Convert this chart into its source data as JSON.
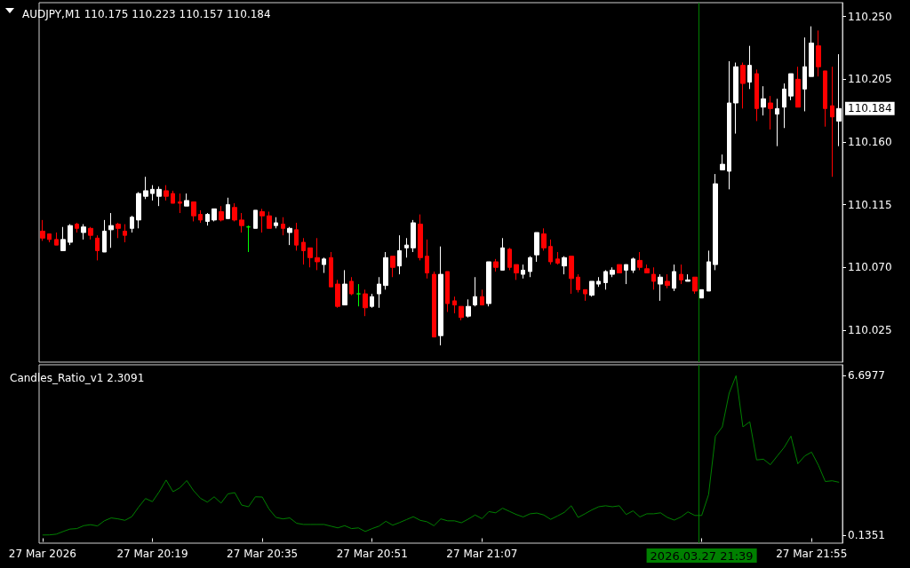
{
  "chart_data": [
    {
      "type": "candlestick",
      "title": "AUDJPY,M1 110.175 110.223 110.157 110.184",
      "categories": [
        "27 Mar 2026",
        null,
        null,
        null,
        null,
        null,
        null,
        null,
        null,
        null,
        null,
        null,
        null,
        null,
        null,
        null,
        "27 Mar 20:19",
        null,
        null,
        null,
        null,
        null,
        null,
        null,
        null,
        null,
        null,
        null,
        null,
        null,
        null,
        null,
        "27 Mar 20:35",
        null,
        null,
        null,
        null,
        null,
        null,
        null,
        null,
        null,
        null,
        null,
        null,
        null,
        null,
        null,
        "27 Mar 20:51",
        null,
        null,
        null,
        null,
        null,
        null,
        null,
        null,
        null,
        null,
        null,
        null,
        null,
        null,
        null,
        "27 Mar 21:07",
        null,
        null,
        null,
        null,
        null,
        null,
        null,
        null,
        null,
        null,
        null,
        null,
        null,
        null,
        null,
        null,
        null,
        null,
        null,
        null,
        null,
        null,
        null,
        null,
        null,
        null,
        null,
        null,
        null,
        null,
        null,
        "2026.03.27 21:39",
        null,
        null,
        null,
        null,
        null,
        null,
        null,
        null,
        null,
        null,
        null,
        null,
        null,
        null,
        null,
        "27 Mar 21:55",
        null,
        null,
        null,
        null
      ],
      "ohlc": [
        [
          110.096,
          110.104,
          110.089,
          110.091
        ],
        [
          110.094,
          110.094,
          110.088,
          110.09
        ],
        [
          110.09,
          110.095,
          110.086,
          110.086
        ],
        [
          110.082,
          110.099,
          110.082,
          110.09
        ],
        [
          110.088,
          110.101,
          110.086,
          110.1
        ],
        [
          110.101,
          110.102,
          110.095,
          110.098
        ],
        [
          110.095,
          110.101,
          110.09,
          110.099
        ],
        [
          110.098,
          110.099,
          110.09,
          110.093
        ],
        [
          110.091,
          110.093,
          110.075,
          110.082
        ],
        [
          110.081,
          110.104,
          110.081,
          110.096
        ],
        [
          110.097,
          110.109,
          110.084,
          110.1
        ],
        [
          110.101,
          110.102,
          110.091,
          110.098
        ],
        [
          110.096,
          110.101,
          110.088,
          110.093
        ],
        [
          110.098,
          110.107,
          110.095,
          110.106
        ],
        [
          110.104,
          110.124,
          110.098,
          110.123
        ],
        [
          110.121,
          110.135,
          110.119,
          110.125
        ],
        [
          110.123,
          110.129,
          110.118,
          110.126
        ],
        [
          110.121,
          110.128,
          110.114,
          110.126
        ],
        [
          110.125,
          110.129,
          110.118,
          110.121
        ],
        [
          110.123,
          110.125,
          110.116,
          110.116
        ],
        [
          110.117,
          110.123,
          110.109,
          110.116
        ],
        [
          110.114,
          110.123,
          110.114,
          110.118
        ],
        [
          110.117,
          110.117,
          110.103,
          110.107
        ],
        [
          110.108,
          110.111,
          110.102,
          110.104
        ],
        [
          110.103,
          110.109,
          110.1,
          110.108
        ],
        [
          110.104,
          110.112,
          110.103,
          110.112
        ],
        [
          110.11,
          110.114,
          110.103,
          110.104
        ],
        [
          110.105,
          110.12,
          110.105,
          110.115
        ],
        [
          110.113,
          110.116,
          110.103,
          110.104
        ],
        [
          110.104,
          110.109,
          110.095,
          110.1
        ],
        [
          110.099,
          110.1,
          110.081,
          110.099
        ],
        [
          110.098,
          110.111,
          110.098,
          110.111
        ],
        [
          110.11,
          110.112,
          110.095,
          110.107
        ],
        [
          110.107,
          110.11,
          110.098,
          110.098
        ],
        [
          110.1,
          110.106,
          110.098,
          110.102
        ],
        [
          110.101,
          110.106,
          110.093,
          110.098
        ],
        [
          110.095,
          110.099,
          110.086,
          110.098
        ],
        [
          110.097,
          110.102,
          110.082,
          110.086
        ],
        [
          110.088,
          110.091,
          110.072,
          110.082
        ],
        [
          110.084,
          110.084,
          110.07,
          110.077
        ],
        [
          110.077,
          110.091,
          110.068,
          110.074
        ],
        [
          110.072,
          110.077,
          110.066,
          110.076
        ],
        [
          110.077,
          110.081,
          110.056,
          110.056
        ],
        [
          110.058,
          110.061,
          110.041,
          110.042
        ],
        [
          110.043,
          110.068,
          110.043,
          110.058
        ],
        [
          110.06,
          110.063,
          110.05,
          110.051
        ],
        [
          110.051,
          110.058,
          110.042,
          110.051
        ],
        [
          110.051,
          110.054,
          110.035,
          110.041
        ],
        [
          110.042,
          110.051,
          110.041,
          110.049
        ],
        [
          110.051,
          110.063,
          110.041,
          110.058
        ],
        [
          110.057,
          110.081,
          110.054,
          110.077
        ],
        [
          110.078,
          110.078,
          110.063,
          110.07
        ],
        [
          110.071,
          110.093,
          110.065,
          110.082
        ],
        [
          110.084,
          110.091,
          110.077,
          110.086
        ],
        [
          110.084,
          110.104,
          110.081,
          110.102
        ],
        [
          110.101,
          110.108,
          110.075,
          110.077
        ],
        [
          110.078,
          110.09,
          110.062,
          110.066
        ],
        [
          110.065,
          110.067,
          110.02,
          110.02
        ],
        [
          110.021,
          110.085,
          110.014,
          110.065
        ],
        [
          110.067,
          110.067,
          110.038,
          110.044
        ],
        [
          110.046,
          110.049,
          110.037,
          110.043
        ],
        [
          110.042,
          110.042,
          110.032,
          110.034
        ],
        [
          110.035,
          110.047,
          110.034,
          110.042
        ],
        [
          110.043,
          110.063,
          110.042,
          110.049
        ],
        [
          110.049,
          110.054,
          110.043,
          110.043
        ],
        [
          110.044,
          110.074,
          110.042,
          110.074
        ],
        [
          110.074,
          110.076,
          110.067,
          110.07
        ],
        [
          110.068,
          110.091,
          110.068,
          110.084
        ],
        [
          110.083,
          110.084,
          110.068,
          110.07
        ],
        [
          110.072,
          110.072,
          110.061,
          110.066
        ],
        [
          110.065,
          110.072,
          110.062,
          110.068
        ],
        [
          110.067,
          110.078,
          110.063,
          110.077
        ],
        [
          110.079,
          110.095,
          110.074,
          110.095
        ],
        [
          110.094,
          110.098,
          110.082,
          110.084
        ],
        [
          110.085,
          110.09,
          110.072,
          110.074
        ],
        [
          110.076,
          110.081,
          110.072,
          110.073
        ],
        [
          110.071,
          110.078,
          110.065,
          110.077
        ],
        [
          110.078,
          110.078,
          110.051,
          110.062
        ],
        [
          110.063,
          110.065,
          110.052,
          110.054
        ],
        [
          110.054,
          110.054,
          110.046,
          110.051
        ],
        [
          110.05,
          110.06,
          110.049,
          110.06
        ],
        [
          110.058,
          110.063,
          110.056,
          110.06
        ],
        [
          110.059,
          110.068,
          110.054,
          110.067
        ],
        [
          110.065,
          110.07,
          110.063,
          110.068
        ],
        [
          110.072,
          110.072,
          110.066,
          110.066
        ],
        [
          110.068,
          110.072,
          110.058,
          110.072
        ],
        [
          110.068,
          110.077,
          110.066,
          110.076
        ],
        [
          110.075,
          110.081,
          110.068,
          110.07
        ],
        [
          110.069,
          110.072,
          110.066,
          110.066
        ],
        [
          110.065,
          110.07,
          110.054,
          110.06
        ],
        [
          110.058,
          110.065,
          110.046,
          110.063
        ],
        [
          110.06,
          110.065,
          110.055,
          110.057
        ],
        [
          110.055,
          110.072,
          110.053,
          110.067
        ],
        [
          110.065,
          110.072,
          110.058,
          110.061
        ],
        [
          110.06,
          110.065,
          110.06,
          110.061
        ],
        [
          110.063,
          110.063,
          110.051,
          110.053
        ],
        [
          110.048,
          110.054,
          110.048,
          110.054
        ],
        [
          110.053,
          110.082,
          110.053,
          110.074
        ],
        [
          110.072,
          110.137,
          110.068,
          110.13
        ],
        [
          110.14,
          110.151,
          110.14,
          110.144
        ],
        [
          110.139,
          110.218,
          110.126,
          110.188
        ],
        [
          110.188,
          110.217,
          110.166,
          110.214
        ],
        [
          110.215,
          110.217,
          110.184,
          110.202
        ],
        [
          110.203,
          110.229,
          110.198,
          110.215
        ],
        [
          110.209,
          110.212,
          110.175,
          110.184
        ],
        [
          110.185,
          110.2,
          110.179,
          110.191
        ],
        [
          110.188,
          110.193,
          110.169,
          110.184
        ],
        [
          110.18,
          110.191,
          110.157,
          110.184
        ],
        [
          110.185,
          110.202,
          110.17,
          110.198
        ],
        [
          110.193,
          110.209,
          110.19,
          110.209
        ],
        [
          110.205,
          110.214,
          110.185,
          110.185
        ],
        [
          110.198,
          110.235,
          110.182,
          110.214
        ],
        [
          110.207,
          110.243,
          110.207,
          110.231
        ],
        [
          110.229,
          110.24,
          110.207,
          110.214
        ],
        [
          110.211,
          110.211,
          110.171,
          110.184
        ],
        [
          110.186,
          110.214,
          110.135,
          110.178
        ],
        [
          110.175,
          110.223,
          110.157,
          110.184
        ]
      ],
      "colors": [
        "#ff0000",
        "#ff0000",
        "#ff0000",
        "#ffffff",
        "#ffffff",
        "#ff0000",
        "#ffffff",
        "#ff0000",
        "#ff0000",
        "#ffffff",
        "#ffffff",
        "#ff0000",
        "#ff0000",
        "#ffffff",
        "#ffffff",
        "#ffffff",
        "#ffffff",
        "#ffffff",
        "#ff0000",
        "#ff0000",
        "#ff0000",
        "#ffffff",
        "#ff0000",
        "#ff0000",
        "#ffffff",
        "#ffffff",
        "#ff0000",
        "#ffffff",
        "#ff0000",
        "#ff0000",
        "#00ff00",
        "#ffffff",
        "#ff0000",
        "#ff0000",
        "#ffffff",
        "#ff0000",
        "#ffffff",
        "#ff0000",
        "#ff0000",
        "#ff0000",
        "#ff0000",
        "#ffffff",
        "#ff0000",
        "#ff0000",
        "#ffffff",
        "#ff0000",
        "#00ff00",
        "#ff0000",
        "#ffffff",
        "#ffffff",
        "#ffffff",
        "#ff0000",
        "#ffffff",
        "#ffffff",
        "#ffffff",
        "#ff0000",
        "#ff0000",
        "#ff0000",
        "#ffffff",
        "#ff0000",
        "#ff0000",
        "#ff0000",
        "#ffffff",
        "#ffffff",
        "#ff0000",
        "#ffffff",
        "#ff0000",
        "#ffffff",
        "#ff0000",
        "#ff0000",
        "#ffffff",
        "#ffffff",
        "#ffffff",
        "#ff0000",
        "#ff0000",
        "#ff0000",
        "#ffffff",
        "#ff0000",
        "#ff0000",
        "#ff0000",
        "#ffffff",
        "#ffffff",
        "#ffffff",
        "#ffffff",
        "#ff0000",
        "#ffffff",
        "#ffffff",
        "#ff0000",
        "#ff0000",
        "#ff0000",
        "#ffffff",
        "#ff0000",
        "#ffffff",
        "#ff0000",
        "#ffffff",
        "#ff0000",
        "#ffffff",
        "#ffffff",
        "#ffffff",
        "#ffffff",
        "#ffffff",
        "#ffffff",
        "#ff0000",
        "#ffffff",
        "#ff0000",
        "#ffffff",
        "#ff0000",
        "#ffffff",
        "#ffffff",
        "#ffffff",
        "#ff0000",
        "#ffffff",
        "#ffffff",
        "#ff0000",
        "#ff0000",
        "#ff0000",
        "#ffffff"
      ],
      "ylim": [
        110.002,
        110.26
      ],
      "yticks": [
        110.025,
        {
          "value": 110.07,
          "label": "110.070"
        },
        110.115,
        {
          "value": 110.16,
          "label": "110.160"
        },
        110.205,
        {
          "value": 110.25,
          "label": "110.250"
        }
      ],
      "tick_labels": "y",
      "ref_lines": [
        {
          "axis": "x",
          "value": "2026.03.27 21:39",
          "color": "#008000"
        }
      ],
      "annotations": [
        "110.184"
      ]
    },
    {
      "type": "line",
      "title": "Candles_Ratio_v1 2.3091",
      "categories": [
        "27 Mar 2026",
        null,
        null,
        null,
        null,
        null,
        null,
        null,
        null,
        null,
        null,
        null,
        null,
        null,
        null,
        null,
        "27 Mar 20:19",
        null,
        null,
        null,
        null,
        null,
        null,
        null,
        null,
        null,
        null,
        null,
        null,
        null,
        null,
        null,
        "27 Mar 20:35",
        null,
        null,
        null,
        null,
        null,
        null,
        null,
        null,
        null,
        null,
        null,
        null,
        null,
        null,
        null,
        "27 Mar 20:51",
        null,
        null,
        null,
        null,
        null,
        null,
        null,
        null,
        null,
        null,
        null,
        null,
        null,
        null,
        null,
        "27 Mar 21:07",
        null,
        null,
        null,
        null,
        null,
        null,
        null,
        null,
        null,
        null,
        null,
        null,
        null,
        null,
        null,
        null,
        null,
        null,
        null,
        null,
        null,
        null,
        null,
        null,
        null,
        null,
        null,
        null,
        null,
        null,
        null,
        "2026.03.27 21:39",
        null,
        null,
        null,
        null,
        null,
        null,
        null,
        null,
        null,
        null,
        null,
        null,
        null,
        null,
        null,
        "27 Mar 21:55",
        null,
        null,
        null,
        null
      ],
      "series": [
        {
          "color": "#008000",
          "values": [
            0.1351,
            0.14,
            0.17,
            0.28,
            0.38,
            0.4,
            0.52,
            0.56,
            0.51,
            0.72,
            0.84,
            0.8,
            0.74,
            0.89,
            1.29,
            1.64,
            1.51,
            1.92,
            2.4,
            1.92,
            2.08,
            2.38,
            1.96,
            1.65,
            1.49,
            1.71,
            1.45,
            1.83,
            1.88,
            1.37,
            1.3,
            1.71,
            1.7,
            1.2,
            0.86,
            0.8,
            0.84,
            0.62,
            0.57,
            0.57,
            0.57,
            0.57,
            0.5,
            0.43,
            0.52,
            0.4,
            0.43,
            0.28,
            0.4,
            0.5,
            0.7,
            0.54,
            0.65,
            0.77,
            0.89,
            0.74,
            0.68,
            0.52,
            0.8,
            0.72,
            0.72,
            0.64,
            0.79,
            0.96,
            0.81,
            1.1,
            1.05,
            1.24,
            1.11,
            0.98,
            0.88,
            1.01,
            1.04,
            0.96,
            0.78,
            0.92,
            1.07,
            1.34,
            0.86,
            1.01,
            1.17,
            1.3,
            1.34,
            1.3,
            1.34,
            0.98,
            1.13,
            0.88,
            1.01,
            1.01,
            1.05,
            0.86,
            0.75,
            0.88,
            1.09,
            0.94,
            0.94,
            1.8,
            4.21,
            4.59,
            5.98,
            6.6977,
            4.59,
            4.8,
            3.23,
            3.26,
            3.03,
            3.39,
            3.74,
            4.21,
            3.07,
            3.39,
            3.55,
            3.01,
            2.34,
            2.37,
            2.3091
          ]
        }
      ],
      "ylim": [
        -0.2,
        7.15
      ],
      "yticks": [
        0.1351,
        6.6977
      ],
      "marker": "none",
      "ref_lines": [
        {
          "axis": "x",
          "value": "2026.03.27 21:39",
          "color": "#008000"
        }
      ]
    }
  ]
}
